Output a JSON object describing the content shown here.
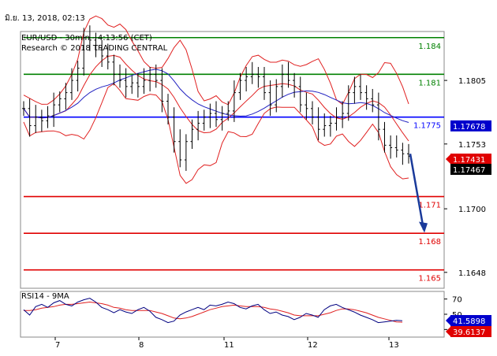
{
  "timestamp": "มิ.ย. 13, 2018, 02:13",
  "chart_data": {
    "type": "line",
    "title": "EUR/USD - 30min - 4:13:56 (CET)",
    "subtitle": "Research © 2018 TRADING CENTRAL",
    "x_ticks": [
      "7",
      "8",
      "11",
      "12",
      "13"
    ],
    "price_axis": {
      "ylim": [
        1.1635,
        1.1845
      ],
      "ticks": [
        "1.1805",
        "1.1753",
        "1.1700",
        "1.1648"
      ]
    },
    "levels": [
      {
        "value": 1.184,
        "label": "1.184",
        "color": "#008000"
      },
      {
        "value": 1.181,
        "label": "1.181",
        "color": "#008000"
      },
      {
        "value": 1.1775,
        "label": "1.1775",
        "color": "#0000ff"
      },
      {
        "value": 1.171,
        "label": "1.171",
        "color": "#e00000"
      },
      {
        "value": 1.168,
        "label": "1.168",
        "color": "#e00000"
      },
      {
        "value": 1.165,
        "label": "1.165",
        "color": "#e00000"
      }
    ],
    "price_tags": [
      {
        "value": 1.17678,
        "label": "1.17678",
        "bg": "#0000cc"
      },
      {
        "value": 1.17431,
        "label": "1.17431",
        "bg": "#e00000",
        "arrow": true
      },
      {
        "value": 1.17467,
        "label": "1.17467",
        "bg": "#000000"
      }
    ],
    "price_close": [
      1.1782,
      1.1768,
      1.1775,
      1.1772,
      1.1776,
      1.1785,
      1.179,
      1.1795,
      1.1805,
      1.1815,
      1.184,
      1.1838,
      1.183,
      1.1825,
      1.182,
      1.181,
      1.1805,
      1.18,
      1.1803,
      1.18,
      1.1805,
      1.181,
      1.1805,
      1.1788,
      1.1775,
      1.1755,
      1.174,
      1.1755,
      1.1765,
      1.177,
      1.1775,
      1.1778,
      1.1773,
      1.1778,
      1.178,
      1.1795,
      1.1805,
      1.1808,
      1.181,
      1.1808,
      1.1795,
      1.1785,
      1.18,
      1.181,
      1.1805,
      1.18,
      1.1785,
      1.1782,
      1.1775,
      1.1765,
      1.1768,
      1.177,
      1.1775,
      1.1778,
      1.1795,
      1.18,
      1.1795,
      1.179,
      1.1785,
      1.1765,
      1.1752,
      1.175,
      1.1748,
      1.1745,
      1.1743
    ],
    "projection": {
      "from": 1.1745,
      "to": 1.1683
    },
    "rsi": {
      "label": "RSI14 - 9MA",
      "ylim": [
        20,
        80
      ],
      "ticks": [
        "70",
        "50",
        "30"
      ],
      "rsi_values": [
        56,
        49,
        60,
        63,
        59,
        65,
        68,
        63,
        61,
        66,
        69,
        71,
        66,
        59,
        56,
        52,
        56,
        53,
        51,
        56,
        59,
        54,
        46,
        43,
        39,
        41,
        49,
        53,
        56,
        59,
        56,
        62,
        61,
        63,
        66,
        64,
        59,
        57,
        61,
        63,
        56,
        51,
        53,
        49,
        47,
        43,
        46,
        51,
        49,
        46,
        56,
        61,
        63,
        59,
        56,
        53,
        49,
        46,
        43,
        39,
        40,
        41,
        42,
        41.5
      ],
      "ma_values": [
        55,
        55,
        56,
        58,
        59,
        60,
        62,
        63,
        63,
        64,
        65,
        66,
        65,
        64,
        62,
        59,
        58,
        56,
        55,
        55,
        55,
        55,
        53,
        51,
        48,
        45,
        44,
        45,
        47,
        50,
        53,
        56,
        58,
        60,
        61,
        62,
        61,
        60,
        60,
        60,
        59,
        57,
        56,
        54,
        52,
        49,
        48,
        48,
        48,
        48,
        50,
        52,
        55,
        57,
        57,
        56,
        54,
        52,
        49,
        46,
        44,
        42,
        40,
        39.6
      ],
      "value_tags": [
        {
          "value": 41.5898,
          "label": "41.5898",
          "bg": "#0000cc"
        },
        {
          "value": 39.6137,
          "label": "39.6137",
          "bg": "#e00000"
        }
      ]
    }
  }
}
